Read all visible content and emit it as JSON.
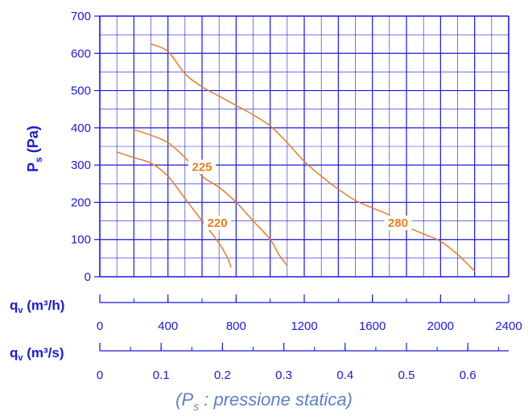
{
  "chart_data": {
    "type": "line",
    "ylabel": "Ps (Pa)",
    "ylabel_main": "P",
    "ylabel_sub": "s",
    "ylabel_unit": " (Pa)",
    "ylim": [
      0,
      700
    ],
    "yticks": [
      0,
      100,
      200,
      300,
      400,
      500,
      600,
      700
    ],
    "xlim": [
      0,
      2400
    ],
    "grid": true,
    "axes": [
      {
        "label": "qv (m³/h)",
        "label_main": "q",
        "label_sub": "v",
        "label_unit": " (m³/h)",
        "ticks": [
          0,
          400,
          800,
          1200,
          1600,
          2000,
          2400
        ],
        "tick_labels": [
          "0",
          "400",
          "800",
          "1200",
          "1600",
          "2000",
          "2400"
        ]
      },
      {
        "label": "qv (m³/s)",
        "label_main": "q",
        "label_sub": "v",
        "label_unit": " (m³/s)",
        "ticks": [
          0,
          0.1,
          0.2,
          0.3,
          0.4,
          0.5,
          0.6
        ],
        "tick_labels": [
          "0",
          "0.1",
          "0.2",
          "0.3",
          "0.4",
          "0.5",
          "0.6"
        ]
      }
    ],
    "series": [
      {
        "name": "220",
        "x": [
          100,
          200,
          300,
          400,
          500,
          600,
          700,
          750,
          770
        ],
        "y": [
          335,
          320,
          305,
          270,
          210,
          150,
          90,
          50,
          25
        ]
      },
      {
        "name": "225",
        "x": [
          200,
          300,
          400,
          500,
          600,
          700,
          800,
          900,
          1000,
          1050,
          1100
        ],
        "y": [
          395,
          380,
          360,
          320,
          270,
          240,
          200,
          150,
          100,
          60,
          30
        ]
      },
      {
        "name": "280",
        "x": [
          300,
          400,
          500,
          600,
          700,
          800,
          900,
          1000,
          1100,
          1200,
          1300,
          1400,
          1500,
          1600,
          1700,
          1800,
          1900,
          2000,
          2100,
          2200
        ],
        "y": [
          625,
          605,
          545,
          510,
          485,
          460,
          435,
          405,
          360,
          310,
          270,
          235,
          205,
          185,
          165,
          135,
          115,
          95,
          60,
          15
        ]
      }
    ],
    "label_positions": [
      {
        "series": "225",
        "x": 600,
        "y": 295
      },
      {
        "series": "220",
        "x": 690,
        "y": 145
      },
      {
        "series": "280",
        "x": 1750,
        "y": 145
      }
    ],
    "colors": {
      "axis": "#1a1adb",
      "grid": "#1a1adb",
      "curve": "#ee7d1e",
      "note": "#5a82c8"
    }
  },
  "footer": {
    "open": "(P",
    "sub": "s",
    "rest": " : pressione statica)"
  }
}
